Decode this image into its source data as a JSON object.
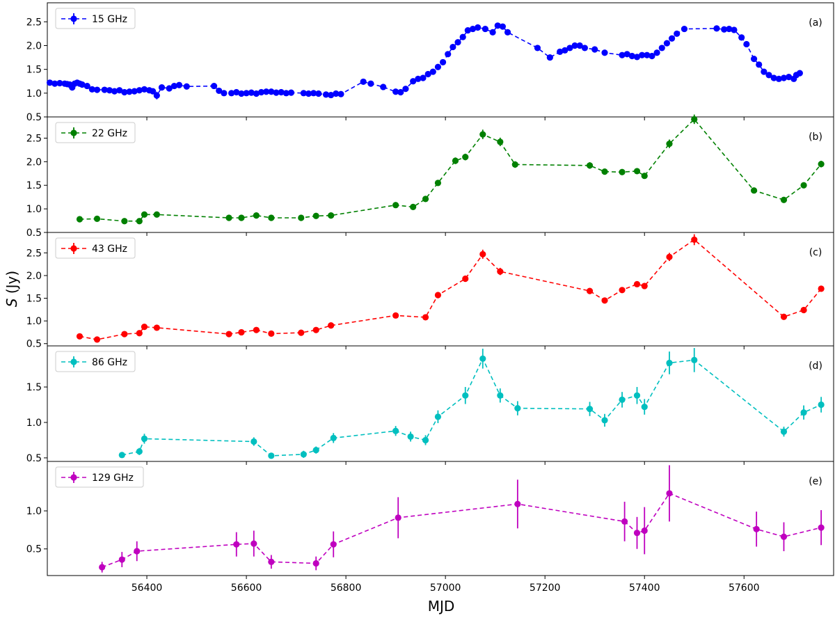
{
  "chart_data": {
    "type": "line",
    "xlabel": "MJD",
    "ylabel": "S (Jy)",
    "xlim": [
      56200,
      57780
    ],
    "x_ticks": [
      56400,
      56600,
      56800,
      57000,
      57200,
      57400,
      57600
    ],
    "grid": false,
    "legend_placement": "top-left",
    "panels": [
      {
        "tag": "(a)",
        "name": "15 GHz",
        "color": "#0000ff",
        "ylim": [
          0.5,
          2.9
        ],
        "y_ticks": [
          0.5,
          1.0,
          1.5,
          2.0,
          2.5
        ],
        "points": [
          [
            56205,
            1.22,
            0.03
          ],
          [
            56215,
            1.2,
            0.03
          ],
          [
            56225,
            1.21,
            0.03
          ],
          [
            56235,
            1.2,
            0.03
          ],
          [
            56240,
            1.19,
            0.03
          ],
          [
            56245,
            1.18,
            0.03
          ],
          [
            56250,
            1.12,
            0.03
          ],
          [
            56255,
            1.2,
            0.03
          ],
          [
            56260,
            1.22,
            0.03
          ],
          [
            56265,
            1.2,
            0.03
          ],
          [
            56270,
            1.18,
            0.03
          ],
          [
            56280,
            1.15,
            0.03
          ],
          [
            56290,
            1.08,
            0.03
          ],
          [
            56300,
            1.07,
            0.03
          ],
          [
            56315,
            1.07,
            0.03
          ],
          [
            56325,
            1.06,
            0.03
          ],
          [
            56335,
            1.04,
            0.03
          ],
          [
            56345,
            1.06,
            0.03
          ],
          [
            56355,
            1.02,
            0.03
          ],
          [
            56365,
            1.03,
            0.03
          ],
          [
            56375,
            1.04,
            0.03
          ],
          [
            56385,
            1.06,
            0.03
          ],
          [
            56395,
            1.08,
            0.03
          ],
          [
            56405,
            1.06,
            0.03
          ],
          [
            56412,
            1.04,
            0.03
          ],
          [
            56420,
            0.95,
            0.08
          ],
          [
            56430,
            1.12,
            0.03
          ],
          [
            56445,
            1.1,
            0.03
          ],
          [
            56455,
            1.15,
            0.03
          ],
          [
            56465,
            1.17,
            0.03
          ],
          [
            56480,
            1.14,
            0.03
          ],
          [
            56535,
            1.15,
            0.03
          ],
          [
            56545,
            1.05,
            0.03
          ],
          [
            56555,
            1.0,
            0.03
          ],
          [
            56570,
            1.0,
            0.03
          ],
          [
            56580,
            1.02,
            0.03
          ],
          [
            56590,
            0.99,
            0.03
          ],
          [
            56600,
            1.0,
            0.03
          ],
          [
            56610,
            1.01,
            0.03
          ],
          [
            56620,
            0.99,
            0.03
          ],
          [
            56630,
            1.02,
            0.03
          ],
          [
            56640,
            1.03,
            0.03
          ],
          [
            56650,
            1.03,
            0.03
          ],
          [
            56660,
            1.01,
            0.03
          ],
          [
            56670,
            1.02,
            0.03
          ],
          [
            56680,
            1.0,
            0.03
          ],
          [
            56690,
            1.01,
            0.03
          ],
          [
            56715,
            1.0,
            0.03
          ],
          [
            56725,
            0.99,
            0.03
          ],
          [
            56735,
            1.0,
            0.03
          ],
          [
            56745,
            0.99,
            0.03
          ],
          [
            56760,
            0.97,
            0.03
          ],
          [
            56770,
            0.96,
            0.03
          ],
          [
            56780,
            0.99,
            0.03
          ],
          [
            56790,
            0.98,
            0.03
          ],
          [
            56835,
            1.24,
            0.03
          ],
          [
            56850,
            1.2,
            0.03
          ],
          [
            56875,
            1.13,
            0.03
          ],
          [
            56900,
            1.03,
            0.03
          ],
          [
            56910,
            1.02,
            0.03
          ],
          [
            56920,
            1.09,
            0.03
          ],
          [
            56935,
            1.25,
            0.03
          ],
          [
            56945,
            1.3,
            0.03
          ],
          [
            56955,
            1.32,
            0.03
          ],
          [
            56965,
            1.4,
            0.03
          ],
          [
            56975,
            1.45,
            0.03
          ],
          [
            56985,
            1.55,
            0.03
          ],
          [
            56995,
            1.65,
            0.03
          ],
          [
            57005,
            1.82,
            0.03
          ],
          [
            57015,
            1.97,
            0.03
          ],
          [
            57025,
            2.07,
            0.03
          ],
          [
            57035,
            2.18,
            0.03
          ],
          [
            57045,
            2.32,
            0.03
          ],
          [
            57055,
            2.35,
            0.03
          ],
          [
            57065,
            2.38,
            0.03
          ],
          [
            57080,
            2.35,
            0.03
          ],
          [
            57095,
            2.28,
            0.03
          ],
          [
            57105,
            2.42,
            0.03
          ],
          [
            57115,
            2.4,
            0.03
          ],
          [
            57125,
            2.28,
            0.03
          ],
          [
            57185,
            1.95,
            0.03
          ],
          [
            57210,
            1.75,
            0.03
          ],
          [
            57230,
            1.87,
            0.03
          ],
          [
            57240,
            1.9,
            0.03
          ],
          [
            57250,
            1.95,
            0.03
          ],
          [
            57260,
            2.0,
            0.03
          ],
          [
            57270,
            2.0,
            0.03
          ],
          [
            57280,
            1.95,
            0.03
          ],
          [
            57300,
            1.92,
            0.03
          ],
          [
            57320,
            1.85,
            0.03
          ],
          [
            57355,
            1.8,
            0.03
          ],
          [
            57365,
            1.82,
            0.03
          ],
          [
            57375,
            1.78,
            0.03
          ],
          [
            57385,
            1.76,
            0.03
          ],
          [
            57395,
            1.8,
            0.03
          ],
          [
            57405,
            1.8,
            0.03
          ],
          [
            57415,
            1.78,
            0.03
          ],
          [
            57425,
            1.85,
            0.03
          ],
          [
            57435,
            1.95,
            0.03
          ],
          [
            57445,
            2.05,
            0.03
          ],
          [
            57455,
            2.15,
            0.03
          ],
          [
            57465,
            2.25,
            0.03
          ],
          [
            57480,
            2.35,
            0.03
          ],
          [
            57545,
            2.36,
            0.03
          ],
          [
            57560,
            2.34,
            0.03
          ],
          [
            57570,
            2.35,
            0.03
          ],
          [
            57580,
            2.33,
            0.03
          ],
          [
            57595,
            2.17,
            0.03
          ],
          [
            57605,
            2.03,
            0.03
          ],
          [
            57620,
            1.72,
            0.03
          ],
          [
            57630,
            1.6,
            0.03
          ],
          [
            57640,
            1.45,
            0.03
          ],
          [
            57650,
            1.38,
            0.03
          ],
          [
            57660,
            1.32,
            0.03
          ],
          [
            57670,
            1.3,
            0.03
          ],
          [
            57680,
            1.32,
            0.03
          ],
          [
            57690,
            1.34,
            0.03
          ],
          [
            57700,
            1.3,
            0.03
          ],
          [
            57705,
            1.38,
            0.03
          ],
          [
            57712,
            1.42,
            0.03
          ]
        ]
      },
      {
        "tag": "(b)",
        "name": "22 GHz",
        "color": "#008000",
        "ylim": [
          0.5,
          2.95
        ],
        "y_ticks": [
          0.5,
          1.0,
          1.5,
          2.0,
          2.5
        ],
        "points": [
          [
            56265,
            0.78,
            0.03
          ],
          [
            56300,
            0.79,
            0.03
          ],
          [
            56355,
            0.74,
            0.03
          ],
          [
            56385,
            0.74,
            0.03
          ],
          [
            56395,
            0.88,
            0.04
          ],
          [
            56420,
            0.88,
            0.04
          ],
          [
            56565,
            0.81,
            0.03
          ],
          [
            56590,
            0.81,
            0.03
          ],
          [
            56620,
            0.86,
            0.04
          ],
          [
            56650,
            0.81,
            0.03
          ],
          [
            56710,
            0.81,
            0.03
          ],
          [
            56740,
            0.85,
            0.03
          ],
          [
            56770,
            0.86,
            0.03
          ],
          [
            56900,
            1.08,
            0.04
          ],
          [
            56935,
            1.04,
            0.04
          ],
          [
            56960,
            1.21,
            0.05
          ],
          [
            56985,
            1.55,
            0.05
          ],
          [
            57020,
            2.02,
            0.07
          ],
          [
            57040,
            2.1,
            0.07
          ],
          [
            57075,
            2.58,
            0.1
          ],
          [
            57110,
            2.42,
            0.09
          ],
          [
            57140,
            1.94,
            0.07
          ],
          [
            57290,
            1.92,
            0.07
          ],
          [
            57320,
            1.79,
            0.06
          ],
          [
            57355,
            1.78,
            0.06
          ],
          [
            57385,
            1.8,
            0.06
          ],
          [
            57400,
            1.7,
            0.06
          ],
          [
            57450,
            2.38,
            0.09
          ],
          [
            57500,
            2.9,
            0.1
          ],
          [
            57620,
            1.39,
            0.05
          ],
          [
            57680,
            1.19,
            0.04
          ],
          [
            57720,
            1.5,
            0.05
          ],
          [
            57755,
            1.95,
            0.07
          ]
        ]
      },
      {
        "tag": "(c)",
        "name": "43 GHz",
        "color": "#ff0000",
        "ylim": [
          0.45,
          2.95
        ],
        "y_ticks": [
          0.5,
          1.0,
          1.5,
          2.0,
          2.5
        ],
        "points": [
          [
            56265,
            0.66,
            0.03
          ],
          [
            56300,
            0.59,
            0.03
          ],
          [
            56355,
            0.71,
            0.03
          ],
          [
            56385,
            0.73,
            0.03
          ],
          [
            56395,
            0.87,
            0.04
          ],
          [
            56420,
            0.85,
            0.04
          ],
          [
            56565,
            0.71,
            0.03
          ],
          [
            56590,
            0.75,
            0.03
          ],
          [
            56620,
            0.8,
            0.04
          ],
          [
            56650,
            0.72,
            0.03
          ],
          [
            56710,
            0.74,
            0.03
          ],
          [
            56740,
            0.8,
            0.03
          ],
          [
            56770,
            0.9,
            0.04
          ],
          [
            56900,
            1.12,
            0.04
          ],
          [
            56960,
            1.08,
            0.04
          ],
          [
            56985,
            1.57,
            0.05
          ],
          [
            57040,
            1.93,
            0.07
          ],
          [
            57075,
            2.47,
            0.1
          ],
          [
            57110,
            2.09,
            0.08
          ],
          [
            57290,
            1.66,
            0.06
          ],
          [
            57320,
            1.45,
            0.05
          ],
          [
            57355,
            1.68,
            0.06
          ],
          [
            57385,
            1.81,
            0.06
          ],
          [
            57400,
            1.77,
            0.06
          ],
          [
            57450,
            2.41,
            0.09
          ],
          [
            57500,
            2.79,
            0.12
          ],
          [
            57680,
            1.09,
            0.04
          ],
          [
            57720,
            1.24,
            0.05
          ],
          [
            57755,
            1.71,
            0.06
          ]
        ]
      },
      {
        "tag": "(d)",
        "name": "86 GHz",
        "color": "#00bfbf",
        "ylim": [
          0.45,
          2.08
        ],
        "y_ticks": [
          0.5,
          1.0,
          1.5
        ],
        "points": [
          [
            56350,
            0.54,
            0.04
          ],
          [
            56385,
            0.59,
            0.05
          ],
          [
            56395,
            0.77,
            0.07
          ],
          [
            56615,
            0.73,
            0.06
          ],
          [
            56650,
            0.53,
            0.04
          ],
          [
            56715,
            0.55,
            0.05
          ],
          [
            56740,
            0.61,
            0.05
          ],
          [
            56775,
            0.78,
            0.07
          ],
          [
            56900,
            0.88,
            0.07
          ],
          [
            56930,
            0.8,
            0.07
          ],
          [
            56960,
            0.75,
            0.07
          ],
          [
            56985,
            1.08,
            0.09
          ],
          [
            57040,
            1.38,
            0.12
          ],
          [
            57075,
            1.9,
            0.14
          ],
          [
            57110,
            1.38,
            0.1
          ],
          [
            57145,
            1.2,
            0.1
          ],
          [
            57290,
            1.19,
            0.1
          ],
          [
            57320,
            1.03,
            0.09
          ],
          [
            57355,
            1.32,
            0.11
          ],
          [
            57385,
            1.38,
            0.12
          ],
          [
            57400,
            1.22,
            0.11
          ],
          [
            57450,
            1.84,
            0.16
          ],
          [
            57500,
            1.88,
            0.17
          ],
          [
            57680,
            0.87,
            0.07
          ],
          [
            57720,
            1.14,
            0.1
          ],
          [
            57755,
            1.25,
            0.11
          ]
        ]
      },
      {
        "tag": "(e)",
        "name": "129 GHz",
        "color": "#bf00bf",
        "ylim": [
          0.15,
          1.65
        ],
        "y_ticks": [
          0.5,
          1.0
        ],
        "points": [
          [
            56310,
            0.26,
            0.07
          ],
          [
            56350,
            0.36,
            0.1
          ],
          [
            56380,
            0.47,
            0.13
          ],
          [
            56580,
            0.56,
            0.16
          ],
          [
            56615,
            0.57,
            0.17
          ],
          [
            56650,
            0.33,
            0.09
          ],
          [
            56740,
            0.31,
            0.09
          ],
          [
            56775,
            0.56,
            0.17
          ],
          [
            56905,
            0.91,
            0.27
          ],
          [
            57145,
            1.09,
            0.32
          ],
          [
            57360,
            0.86,
            0.26
          ],
          [
            57385,
            0.71,
            0.21
          ],
          [
            57400,
            0.74,
            0.31
          ],
          [
            57450,
            1.23,
            0.37
          ],
          [
            57625,
            0.76,
            0.23
          ],
          [
            57680,
            0.66,
            0.19
          ],
          [
            57755,
            0.78,
            0.23
          ]
        ]
      }
    ]
  }
}
